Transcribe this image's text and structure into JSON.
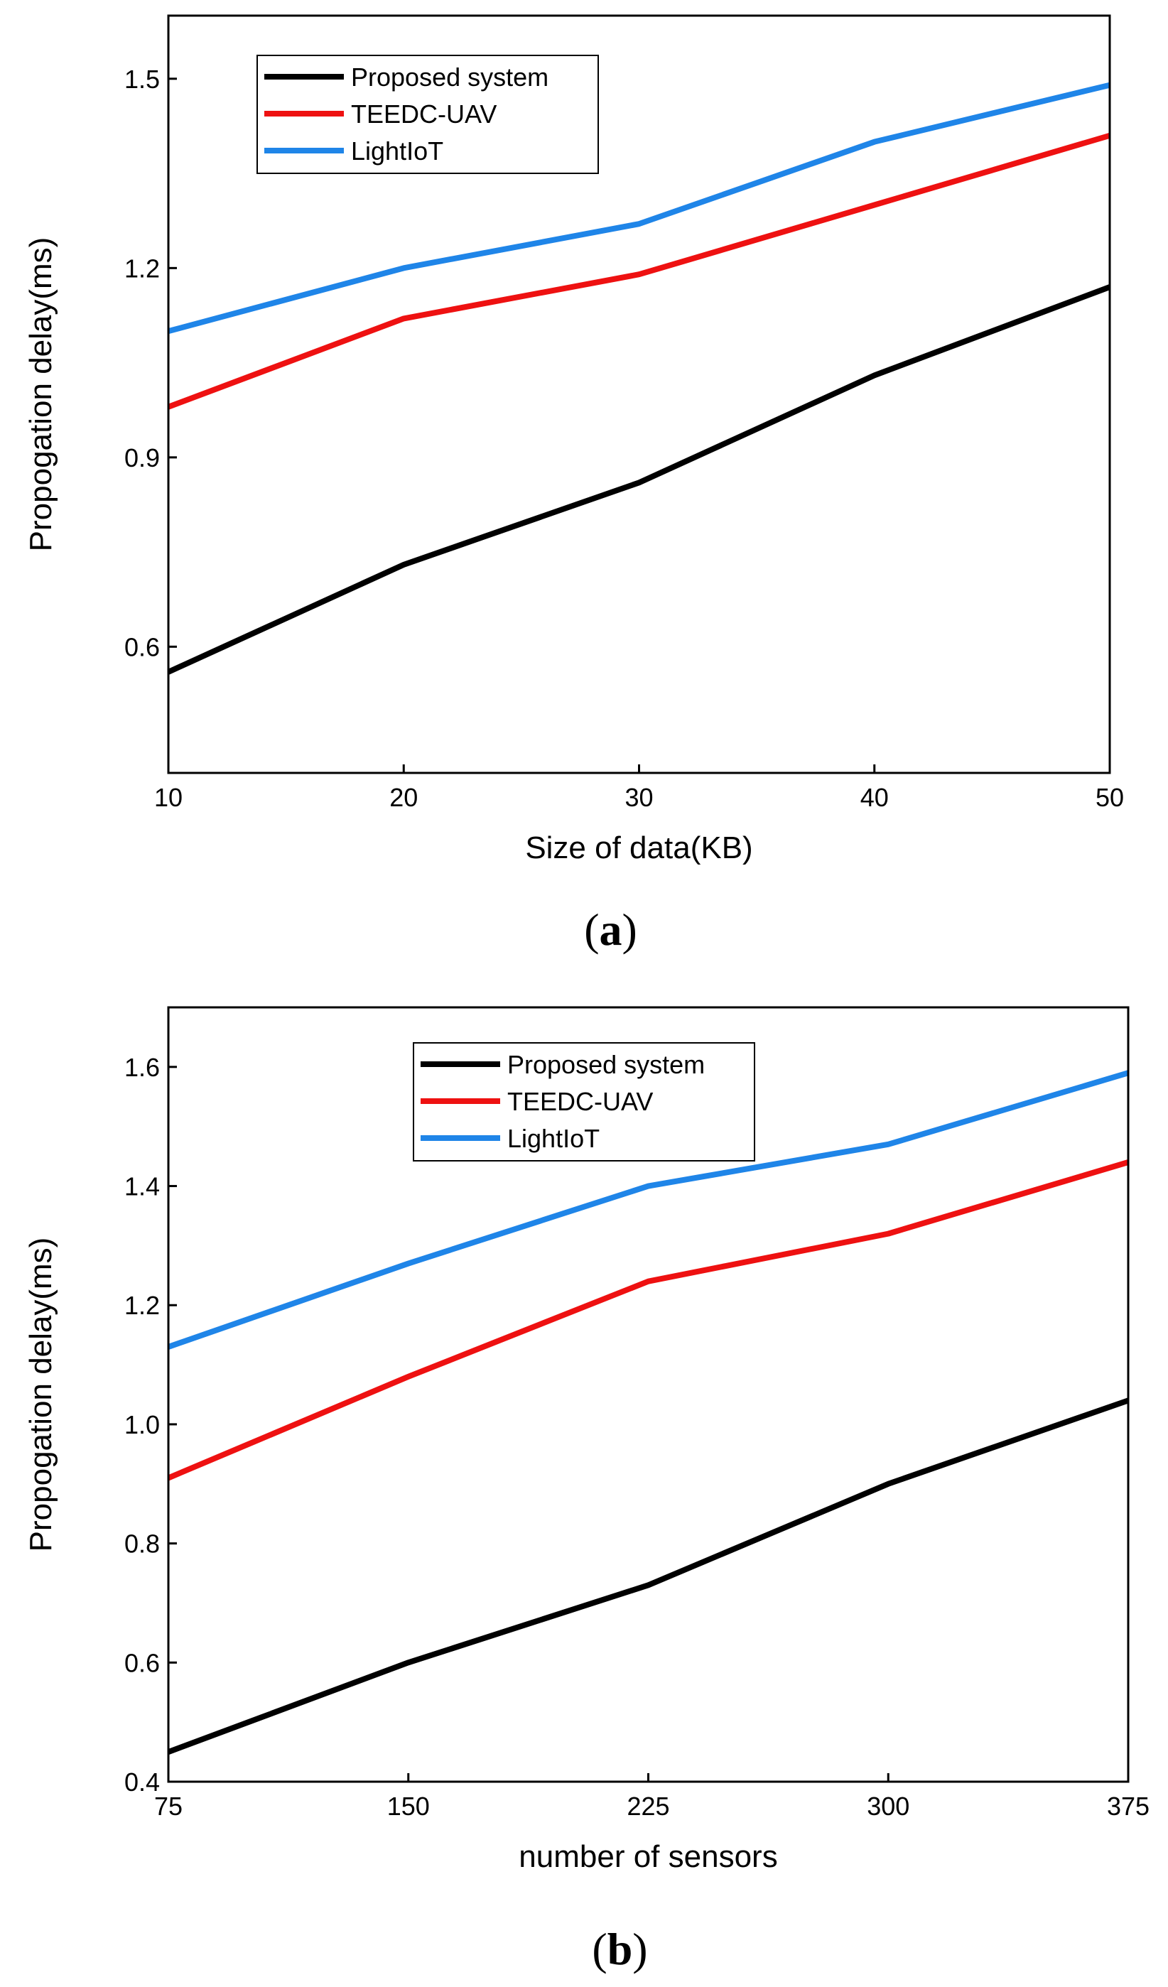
{
  "chart_data": [
    {
      "type": "line",
      "panel_label": "a",
      "title": "",
      "xlabel": "Size of data(KB)",
      "ylabel": "Propogation delay(ms)",
      "x": [
        10,
        20,
        30,
        40,
        50
      ],
      "xticks": [
        "10",
        "20",
        "30",
        "40",
        "50"
      ],
      "yticks": [
        "0.6",
        "0.9",
        "1.2",
        "1.5"
      ],
      "ytick_values": [
        0.6,
        0.9,
        1.2,
        1.5
      ],
      "xlim": [
        10,
        50
      ],
      "ylim": [
        0.4,
        1.6
      ],
      "grid": false,
      "legend_position": "top-left",
      "series": [
        {
          "name": "Proposed system",
          "color": "#000000",
          "values": [
            0.56,
            0.73,
            0.86,
            1.03,
            1.17
          ]
        },
        {
          "name": "TEEDC-UAV",
          "color": "#ee1111",
          "values": [
            0.98,
            1.12,
            1.19,
            1.3,
            1.41
          ]
        },
        {
          "name": "LightIoT",
          "color": "#1f85e8",
          "values": [
            1.1,
            1.2,
            1.27,
            1.4,
            1.49
          ]
        }
      ]
    },
    {
      "type": "line",
      "panel_label": "b",
      "title": "",
      "xlabel": "number of sensors",
      "ylabel": "Propogation delay(ms)",
      "x": [
        75,
        150,
        225,
        300,
        375
      ],
      "xticks": [
        "75",
        "150",
        "225",
        "300",
        "375"
      ],
      "yticks": [
        "0.4",
        "0.6",
        "0.8",
        "1.0",
        "1.2",
        "1.4",
        "1.6"
      ],
      "ytick_values": [
        0.4,
        0.6,
        0.8,
        1.0,
        1.2,
        1.4,
        1.6
      ],
      "xlim": [
        75,
        375
      ],
      "ylim": [
        0.4,
        1.7
      ],
      "grid": false,
      "legend_position": "top-center",
      "series": [
        {
          "name": "Proposed system",
          "color": "#000000",
          "values": [
            0.45,
            0.6,
            0.73,
            0.9,
            1.04
          ]
        },
        {
          "name": "TEEDC-UAV",
          "color": "#ee1111",
          "values": [
            0.91,
            1.08,
            1.24,
            1.32,
            1.44
          ]
        },
        {
          "name": "LightIoT",
          "color": "#1f85e8",
          "values": [
            1.13,
            1.27,
            1.4,
            1.47,
            1.59
          ]
        }
      ]
    }
  ]
}
